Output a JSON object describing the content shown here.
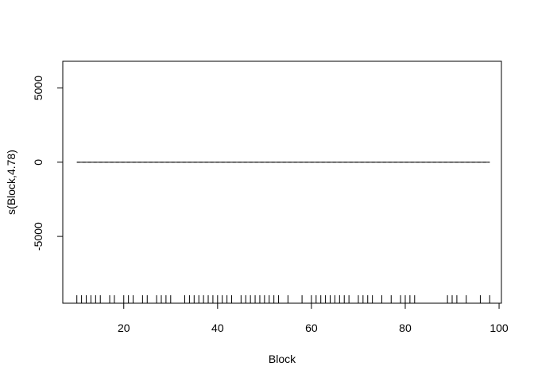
{
  "chart_data": {
    "type": "line",
    "title": "",
    "xlabel": "Block",
    "ylabel": "s(Block,4.78)",
    "xlim": [
      7,
      100.5
    ],
    "ylim": [
      -9500,
      6800
    ],
    "xticks": [
      20,
      40,
      60,
      80,
      100
    ],
    "yticks": [
      5000,
      0,
      -5000
    ],
    "ytick_labels": [
      "5000",
      "0",
      "-5000"
    ],
    "grid": false,
    "series": [
      {
        "style": "solid",
        "x": [
          10,
          98
        ],
        "y": [
          0,
          0
        ]
      },
      {
        "style": "dashed",
        "x": [
          10,
          98
        ],
        "y": [
          0,
          0
        ]
      }
    ],
    "rug": [
      10,
      11,
      12,
      13,
      14,
      15,
      17,
      18,
      20,
      21,
      22,
      24,
      25,
      27,
      28,
      29,
      30,
      33,
      34,
      35,
      36,
      37,
      38,
      39,
      40,
      41,
      42,
      43,
      45,
      46,
      47,
      48,
      49,
      50,
      51,
      52,
      53,
      55,
      58,
      60,
      61,
      62,
      63,
      64,
      65,
      66,
      67,
      68,
      70,
      71,
      72,
      73,
      75,
      77,
      79,
      80,
      81,
      82,
      89,
      90,
      91,
      93,
      96,
      98
    ]
  }
}
